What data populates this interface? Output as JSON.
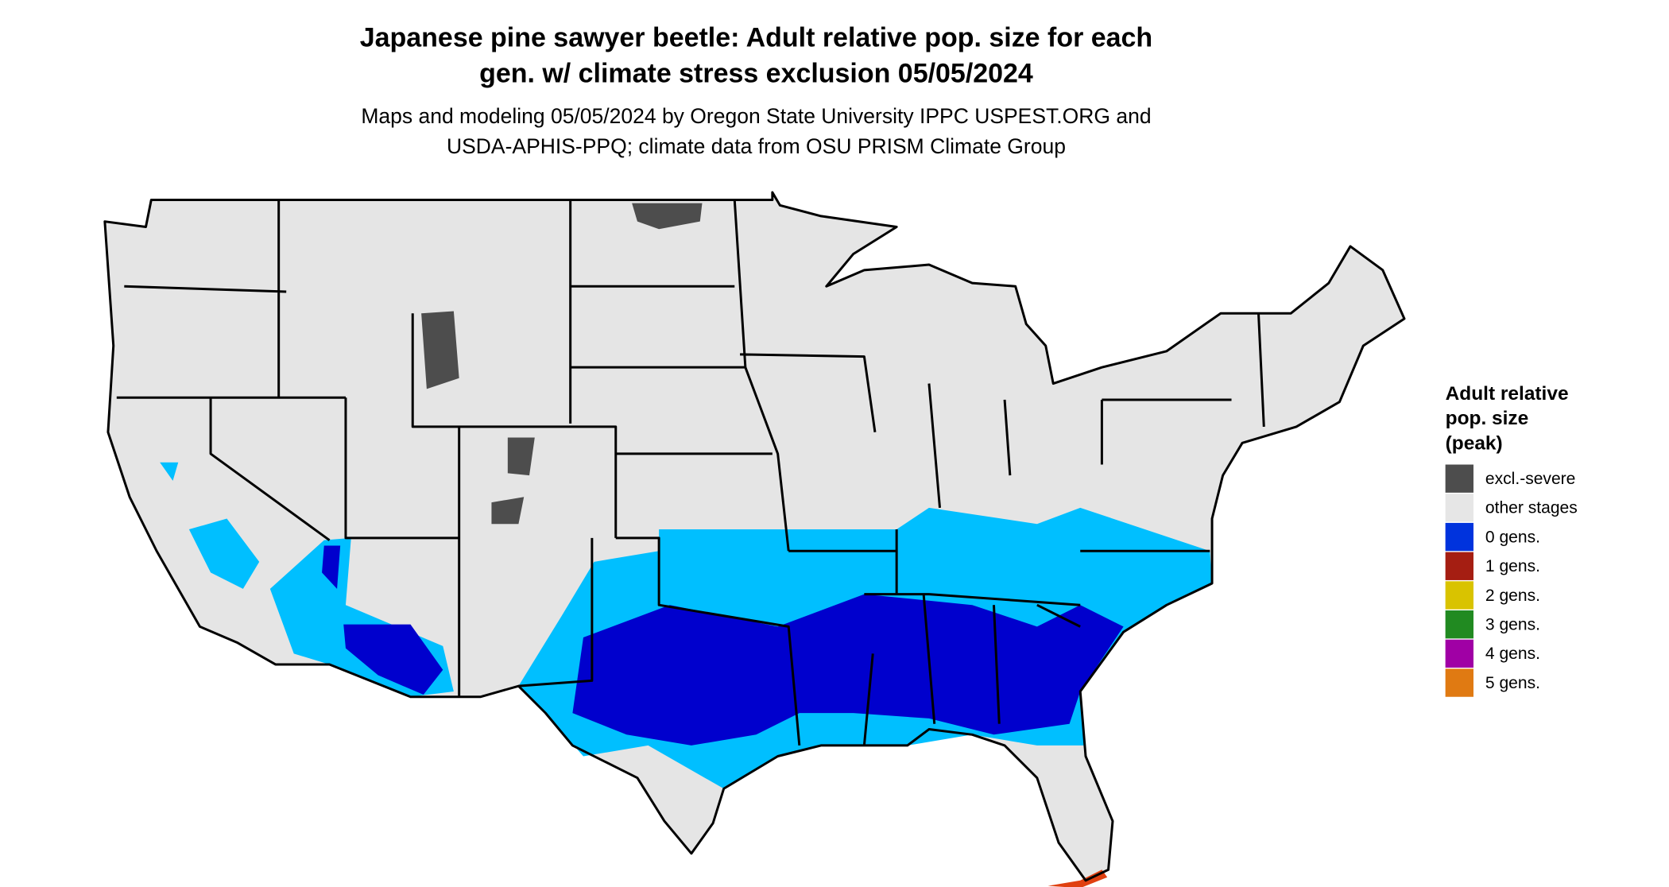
{
  "header": {
    "title": [
      "Japanese pine sawyer beetle: Adult relative pop. size for each",
      "gen. w/ climate stress exclusion 05/05/2024"
    ],
    "subtitle": [
      "Maps and modeling 05/05/2024 by Oregon State University IPPC USPEST.ORG and",
      "USDA-APHIS-PPQ; climate data from OSU PRISM Climate Group"
    ]
  },
  "legend": {
    "title": [
      "Adult relative",
      "pop. size",
      "(peak)"
    ],
    "items": [
      {
        "label": "excl.-severe",
        "color": "#4d4d4d"
      },
      {
        "label": "other stages",
        "color": "#e6e6e6"
      },
      {
        "label": "0 gens.",
        "color": "#0033dd"
      },
      {
        "label": "1 gens.",
        "color": "#a51e12"
      },
      {
        "label": "2 gens.",
        "color": "#d9c300"
      },
      {
        "label": "3 gens.",
        "color": "#218a21"
      },
      {
        "label": "4 gens.",
        "color": "#a000a5"
      },
      {
        "label": "5 gens.",
        "color": "#e07a12"
      }
    ]
  }
}
